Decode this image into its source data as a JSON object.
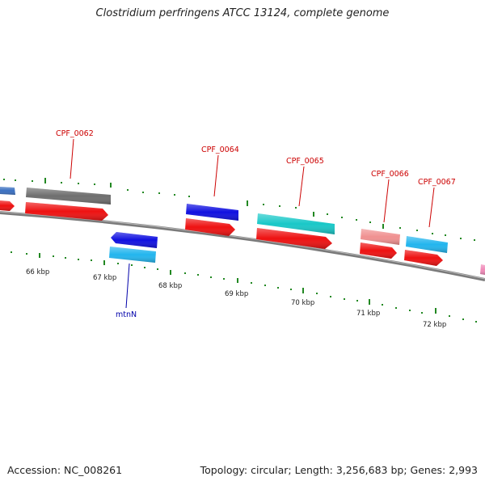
{
  "title": "Clostridium perfringens ATCC 13124, complete genome",
  "footer": {
    "accession": "Accession: NC_008261",
    "summary": "Topology: circular; Length: 3,256,683 bp; Genes: 2,993"
  },
  "ticks": [
    "66 kbp",
    "67 kbp",
    "68 kbp",
    "69 kbp",
    "70 kbp",
    "71 kbp",
    "72 kbp"
  ],
  "gene_labels": {
    "cpf_0062": "CPF_0062",
    "cpf_0064": "CPF_0064",
    "cpf_0065": "CPF_0065",
    "cpf_0066": "CPF_0066",
    "cpf_0067": "CPF_0067",
    "mtnN": "mtnN"
  },
  "colors": {
    "backbone": "#7a7a7a",
    "cds": "#ee1111",
    "gene_blue": "#1010e0",
    "gene_cyan": "#19c8c8",
    "gene_light_blue": "#22b5ee",
    "gene_pink": "#f09090",
    "gene_gray": "#6e6e6e",
    "tick": "#228822",
    "label_red": "#cc0000",
    "label_blue": "#0000aa"
  }
}
